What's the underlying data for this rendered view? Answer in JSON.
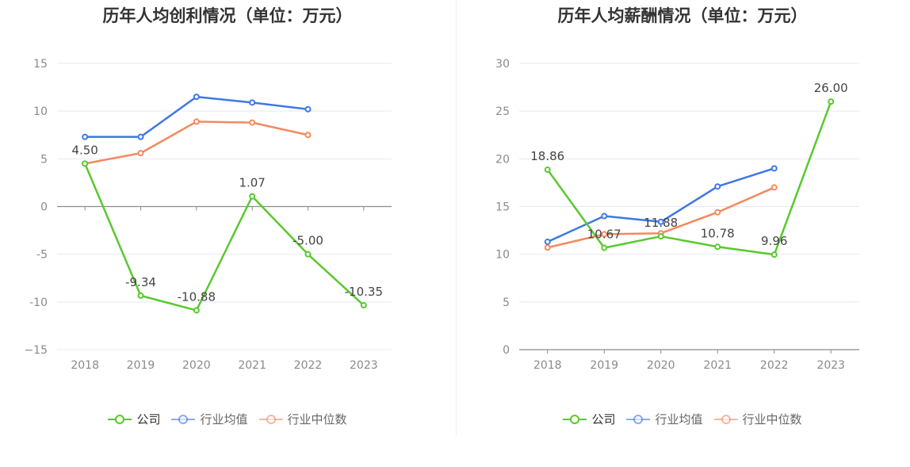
{
  "chart_data": [
    {
      "type": "line",
      "title": "历年人均创利情况（单位：万元）",
      "categories": [
        "2018",
        "2019",
        "2020",
        "2021",
        "2022",
        "2023"
      ],
      "ylim": [
        -15,
        15
      ],
      "yticks": [
        15,
        10,
        5,
        0,
        -5,
        -10,
        -15
      ],
      "ytick_labels": [
        "15",
        "10",
        "5",
        "0",
        "-5",
        "-10",
        "−15"
      ],
      "grid": true,
      "legend_position": "bottom",
      "series": [
        {
          "name": "公司",
          "color": "#5ac82f",
          "values": [
            4.5,
            -9.34,
            -10.88,
            1.07,
            -5.0,
            -10.35
          ],
          "labels": [
            "4.50",
            "-9.34",
            "-10.88",
            "1.07",
            "-5.00",
            "-10.35"
          ]
        },
        {
          "name": "行业均值",
          "color": "#3d78e6",
          "values": [
            7.3,
            7.3,
            11.5,
            10.9,
            10.2,
            null
          ]
        },
        {
          "name": "行业中位数",
          "color": "#f4895f",
          "values": [
            4.5,
            5.6,
            8.9,
            8.8,
            7.5,
            null
          ]
        }
      ]
    },
    {
      "type": "line",
      "title": "历年人均薪酬情况（单位：万元）",
      "categories": [
        "2018",
        "2019",
        "2020",
        "2021",
        "2022",
        "2023"
      ],
      "ylim": [
        0,
        30
      ],
      "yticks": [
        30,
        25,
        20,
        15,
        10,
        5,
        0
      ],
      "ytick_labels": [
        "30",
        "25",
        "20",
        "15",
        "10",
        "5",
        "0"
      ],
      "grid": true,
      "legend_position": "bottom",
      "series": [
        {
          "name": "公司",
          "color": "#5ac82f",
          "values": [
            18.86,
            10.67,
            11.88,
            10.78,
            9.96,
            26.0
          ],
          "labels": [
            "18.86",
            "10.67",
            "11.88",
            "10.78",
            "9.96",
            "26.00"
          ]
        },
        {
          "name": "行业均值",
          "color": "#3d78e6",
          "values": [
            11.3,
            14.0,
            13.4,
            17.1,
            19.0,
            null
          ]
        },
        {
          "name": "行业中位数",
          "color": "#f4895f",
          "values": [
            10.7,
            12.1,
            12.2,
            14.4,
            17.0,
            null
          ]
        }
      ]
    }
  ]
}
